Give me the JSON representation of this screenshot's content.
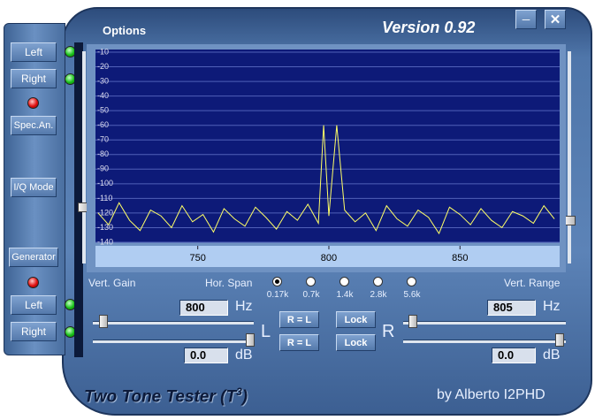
{
  "header": {
    "menu": "Options",
    "version": "Version 0.92"
  },
  "side_buttons": {
    "left_top": "Left",
    "right_top": "Right",
    "spec_an": "Spec.An.",
    "iq_mode": "I/Q Mode",
    "generator": "Generator",
    "left_bottom": "Left",
    "right_bottom": "Right"
  },
  "spectrum": {
    "type": "line",
    "color": "#ffff66",
    "xlim": [
      711,
      888
    ],
    "ylim": [
      -140,
      -10
    ],
    "xticks": [
      750,
      800,
      850
    ],
    "yticks": [
      -10,
      -20,
      -30,
      -40,
      -50,
      -60,
      -70,
      -80,
      -90,
      -100,
      -110,
      -120,
      -130,
      -140
    ],
    "x": [
      712,
      716,
      720,
      724,
      728,
      732,
      736,
      740,
      744,
      748,
      752,
      756,
      760,
      764,
      768,
      772,
      776,
      780,
      784,
      788,
      792,
      796,
      798,
      800,
      803,
      806,
      810,
      814,
      818,
      822,
      826,
      830,
      834,
      838,
      842,
      846,
      850,
      854,
      858,
      862,
      866,
      870,
      874,
      878,
      882,
      886
    ],
    "values": [
      -120,
      -128,
      -113,
      -125,
      -132,
      -118,
      -122,
      -130,
      -115,
      -126,
      -121,
      -133,
      -117,
      -124,
      -129,
      -116,
      -123,
      -131,
      -119,
      -125,
      -114,
      -127,
      -60,
      -122,
      -60,
      -118,
      -126,
      -120,
      -132,
      -115,
      -124,
      -129,
      -118,
      -123,
      -134,
      -116,
      -121,
      -128,
      -117,
      -125,
      -130,
      -119,
      -122,
      -127,
      -115,
      -124
    ]
  },
  "controls": {
    "vert_gain": "Vert. Gain",
    "hor_span": "Hor. Span",
    "spans": [
      "0.17k",
      "0.7k",
      "1.4k",
      "2.8k",
      "5.6k"
    ],
    "vert_range": "Vert. Range",
    "left": {
      "freq": "800",
      "freq_unit": "Hz",
      "channel": "L",
      "gain": "0.0",
      "gain_unit": "dB"
    },
    "right": {
      "freq": "805",
      "freq_unit": "Hz",
      "channel": "R",
      "gain": "0.0",
      "gain_unit": "dB"
    },
    "copy_buttons": [
      "R = L",
      "R = L"
    ],
    "lock_buttons": [
      "Lock",
      "Lock"
    ]
  },
  "footer": {
    "title": "Two Tone Tester (T",
    "title_sup": "3",
    "title_end": ")",
    "author": "by Alberto I2PHD"
  }
}
